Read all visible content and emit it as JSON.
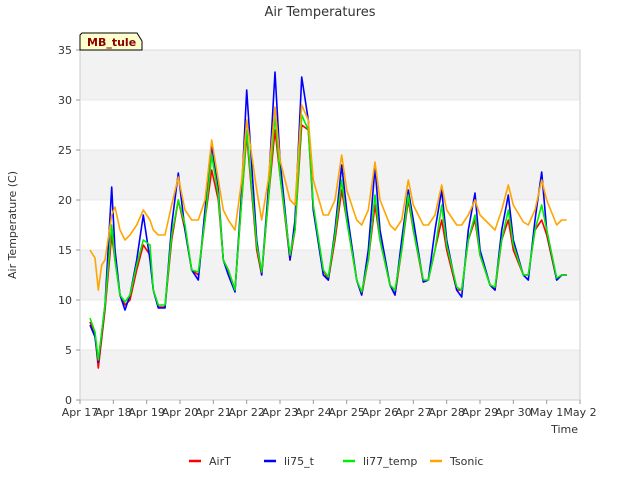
{
  "chart_data": {
    "type": "line",
    "title": "Air Temperatures",
    "xlabel": "Time",
    "ylabel": "Air Temperature (C)",
    "station_label": "MB_tule",
    "ylim": [
      0,
      35
    ],
    "yticks": [
      0,
      5,
      10,
      15,
      20,
      25,
      30,
      35
    ],
    "xlim": [
      0,
      15
    ],
    "xtick_labels": [
      "Apr 17",
      "Apr 18",
      "Apr 19",
      "Apr 20",
      "Apr 21",
      "Apr 22",
      "Apr 23",
      "Apr 24",
      "Apr 25",
      "Apr 26",
      "Apr 27",
      "Apr 28",
      "Apr 29",
      "Apr 30",
      "May 1",
      "May 2"
    ],
    "grid": "horizontal bands",
    "legend_position": "bottom",
    "series": [
      {
        "name": "AirT",
        "color": "#ff0000",
        "x": [
          0.3,
          0.45,
          0.55,
          0.75,
          0.95,
          1.05,
          1.2,
          1.35,
          1.5,
          1.7,
          1.9,
          2.1,
          2.2,
          2.35,
          2.55,
          2.75,
          2.95,
          3.15,
          3.35,
          3.55,
          3.75,
          3.95,
          4.15,
          4.3,
          4.45,
          4.65,
          4.85,
          5.0,
          5.3,
          5.45,
          5.65,
          5.85,
          6.0,
          6.3,
          6.45,
          6.65,
          6.85,
          7.0,
          7.3,
          7.45,
          7.65,
          7.85,
          8.0,
          8.3,
          8.45,
          8.65,
          8.85,
          9.0,
          9.3,
          9.45,
          9.65,
          9.85,
          10.0,
          10.3,
          10.45,
          10.65,
          10.85,
          11.0,
          11.3,
          11.45,
          11.65,
          11.85,
          12.0,
          12.3,
          12.45,
          12.65,
          12.85,
          13.0,
          13.3,
          13.45,
          13.65,
          13.85,
          14.0,
          14.3,
          14.45,
          14.6
        ],
        "y": [
          7.8,
          6.5,
          3.2,
          9.0,
          16.5,
          14.0,
          10.5,
          9.5,
          10.0,
          13.0,
          15.5,
          14.5,
          11.0,
          9.3,
          9.3,
          16.0,
          20.0,
          17.0,
          13.0,
          12.5,
          18.0,
          23.0,
          20.0,
          14.0,
          13.0,
          11.0,
          20.0,
          26.5,
          15.0,
          12.5,
          20.0,
          27.0,
          22.5,
          14.0,
          17.0,
          27.5,
          27.0,
          19.0,
          13.0,
          12.0,
          16.0,
          21.0,
          18.0,
          12.0,
          10.5,
          14.0,
          19.5,
          16.0,
          11.5,
          10.5,
          15.0,
          20.0,
          17.0,
          11.8,
          12.0,
          15.0,
          18.0,
          15.0,
          11.0,
          11.0,
          16.0,
          18.0,
          14.5,
          11.5,
          11.0,
          16.0,
          18.0,
          15.0,
          12.5,
          12.5,
          17.0,
          18.0,
          16.5,
          12.0,
          12.5,
          12.5
        ]
      },
      {
        "name": "li75_t",
        "color": "#0000ff",
        "x": [
          0.3,
          0.45,
          0.55,
          0.75,
          0.95,
          1.05,
          1.2,
          1.35,
          1.5,
          1.7,
          1.9,
          2.1,
          2.2,
          2.35,
          2.55,
          2.75,
          2.95,
          3.15,
          3.35,
          3.55,
          3.75,
          3.95,
          4.15,
          4.3,
          4.45,
          4.65,
          4.85,
          5.0,
          5.3,
          5.45,
          5.65,
          5.85,
          6.0,
          6.3,
          6.45,
          6.65,
          6.85,
          7.0,
          7.3,
          7.45,
          7.65,
          7.85,
          8.0,
          8.3,
          8.45,
          8.65,
          8.85,
          9.0,
          9.3,
          9.45,
          9.65,
          9.85,
          10.0,
          10.3,
          10.45,
          10.65,
          10.85,
          11.0,
          11.3,
          11.45,
          11.65,
          11.85,
          12.0,
          12.3,
          12.45,
          12.65,
          12.85,
          13.0,
          13.3,
          13.45,
          13.65,
          13.85,
          14.0,
          14.3,
          14.45,
          14.6
        ],
        "y": [
          7.5,
          6.3,
          3.8,
          9.5,
          21.3,
          15.0,
          10.5,
          9.0,
          10.5,
          14.0,
          18.5,
          14.0,
          11.0,
          9.2,
          9.2,
          17.5,
          22.7,
          17.0,
          13.0,
          12.0,
          19.0,
          25.5,
          21.0,
          14.0,
          12.5,
          10.8,
          21.0,
          31.0,
          16.0,
          12.5,
          21.0,
          32.8,
          24.0,
          14.0,
          18.0,
          32.3,
          28.0,
          19.0,
          12.5,
          12.0,
          17.0,
          23.5,
          19.0,
          12.0,
          10.5,
          15.0,
          23.3,
          17.0,
          11.5,
          10.5,
          16.0,
          21.0,
          18.0,
          11.8,
          12.0,
          17.0,
          21.0,
          16.0,
          11.0,
          10.3,
          17.0,
          20.7,
          15.0,
          11.5,
          11.0,
          17.0,
          20.5,
          16.0,
          12.5,
          12.0,
          18.0,
          22.8,
          17.0,
          12.0,
          12.5,
          12.5
        ]
      },
      {
        "name": "li77_temp",
        "color": "#00ee00",
        "x": [
          0.3,
          0.45,
          0.55,
          0.75,
          0.95,
          1.05,
          1.2,
          1.35,
          1.5,
          1.7,
          1.9,
          2.1,
          2.2,
          2.35,
          2.55,
          2.75,
          2.95,
          3.15,
          3.35,
          3.55,
          3.75,
          3.95,
          4.15,
          4.3,
          4.45,
          4.65,
          4.85,
          5.0,
          5.3,
          5.45,
          5.65,
          5.85,
          6.0,
          6.3,
          6.45,
          6.65,
          6.85,
          7.0,
          7.3,
          7.45,
          7.65,
          7.85,
          8.0,
          8.3,
          8.45,
          8.65,
          8.85,
          9.0,
          9.3,
          9.45,
          9.65,
          9.85,
          10.0,
          10.3,
          10.45,
          10.65,
          10.85,
          11.0,
          11.3,
          11.45,
          11.65,
          11.85,
          12.0,
          12.3,
          12.45,
          12.65,
          12.85,
          13.0,
          13.3,
          13.45,
          13.65,
          13.85,
          14.0,
          14.3,
          14.45,
          14.6
        ],
        "y": [
          8.2,
          6.8,
          4.0,
          9.5,
          17.5,
          14.0,
          10.5,
          9.8,
          10.5,
          13.5,
          16.0,
          15.5,
          11.0,
          9.5,
          9.5,
          16.5,
          20.0,
          17.5,
          13.0,
          12.8,
          18.0,
          24.5,
          20.5,
          14.0,
          13.0,
          11.0,
          20.0,
          27.0,
          15.5,
          12.8,
          20.0,
          28.5,
          22.5,
          14.5,
          17.0,
          28.5,
          27.0,
          19.5,
          13.0,
          12.3,
          16.5,
          22.0,
          18.0,
          12.0,
          10.8,
          14.0,
          20.5,
          16.0,
          11.5,
          11.0,
          15.0,
          20.5,
          17.0,
          12.0,
          12.0,
          15.0,
          19.5,
          15.5,
          11.3,
          11.0,
          16.0,
          18.5,
          14.5,
          11.5,
          11.3,
          16.0,
          19.0,
          15.5,
          12.5,
          12.5,
          17.0,
          19.5,
          17.0,
          12.2,
          12.5,
          12.5
        ]
      },
      {
        "name": "Tsonic",
        "color": "#ffa500",
        "x": [
          0.3,
          0.45,
          0.55,
          0.65,
          0.75,
          0.95,
          1.05,
          1.2,
          1.35,
          1.5,
          1.7,
          1.9,
          2.1,
          2.2,
          2.35,
          2.55,
          2.75,
          2.95,
          3.15,
          3.35,
          3.55,
          3.75,
          3.95,
          4.15,
          4.3,
          4.45,
          4.65,
          4.85,
          5.0,
          5.3,
          5.45,
          5.65,
          5.85,
          6.0,
          6.3,
          6.45,
          6.65,
          6.85,
          7.0,
          7.3,
          7.45,
          7.65,
          7.85,
          8.0,
          8.3,
          8.45,
          8.65,
          8.85,
          9.0,
          9.3,
          9.45,
          9.65,
          9.85,
          10.0,
          10.3,
          10.45,
          10.65,
          10.85,
          11.0,
          11.3,
          11.45,
          11.65,
          11.85,
          12.0,
          12.3,
          12.45,
          12.65,
          12.85,
          13.0,
          13.3,
          13.45,
          13.65,
          13.85,
          14.0,
          14.3,
          14.45,
          14.6
        ],
        "y": [
          15.0,
          14.2,
          11.0,
          13.5,
          14.0,
          18.5,
          19.3,
          17.0,
          16.0,
          16.5,
          17.5,
          19.0,
          18.0,
          17.0,
          16.5,
          16.5,
          19.5,
          22.3,
          19.0,
          18.0,
          18.0,
          20.0,
          26.0,
          22.0,
          19.0,
          18.0,
          17.0,
          22.0,
          28.0,
          21.0,
          18.0,
          22.0,
          29.3,
          24.0,
          20.0,
          19.5,
          29.5,
          28.0,
          22.0,
          18.5,
          18.5,
          20.0,
          24.5,
          21.0,
          18.0,
          17.5,
          19.0,
          23.8,
          20.0,
          17.5,
          17.0,
          18.0,
          22.0,
          19.5,
          17.5,
          17.5,
          18.5,
          21.5,
          19.0,
          17.5,
          17.5,
          18.5,
          20.0,
          18.5,
          17.5,
          17.0,
          19.0,
          21.5,
          19.5,
          17.8,
          17.5,
          19.0,
          22.0,
          20.0,
          17.5,
          18.0,
          18.0
        ]
      }
    ]
  }
}
